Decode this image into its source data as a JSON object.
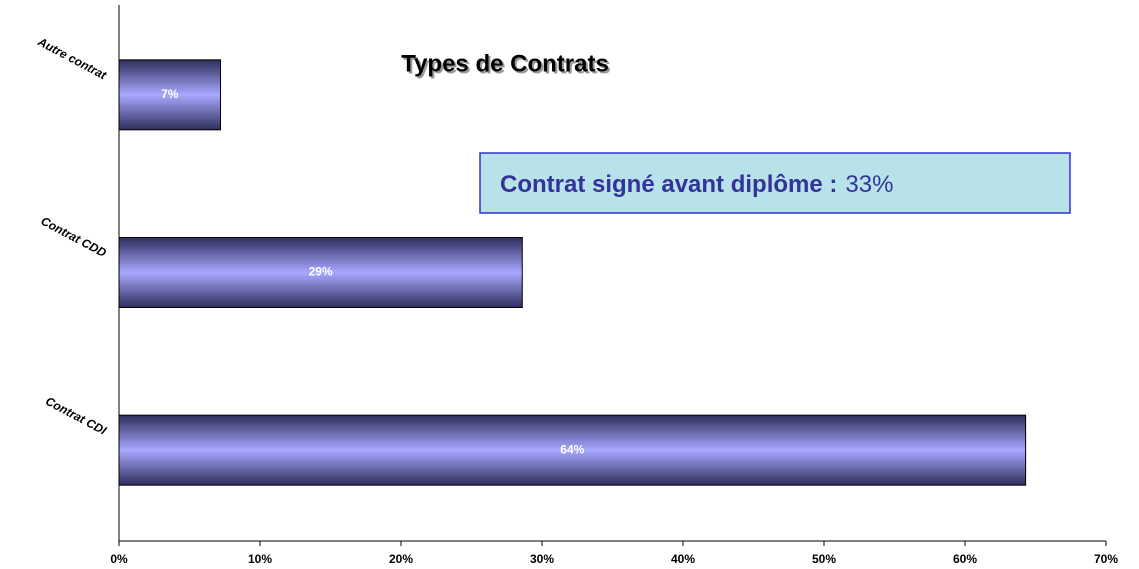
{
  "chart_data": {
    "type": "bar",
    "orientation": "horizontal",
    "title": "Types de Contrats",
    "categories": [
      "Autre contrat",
      "Contrat CDD",
      "Contrat CDI"
    ],
    "values": [
      7.2,
      28.6,
      64.3
    ],
    "value_labels": [
      "7%",
      "29%",
      "64%"
    ],
    "color": "#9999ff",
    "xlim": [
      0,
      70
    ],
    "xticks": [
      {
        "value": 0,
        "label": "0%"
      },
      {
        "value": 10,
        "label": "10%"
      },
      {
        "value": 20,
        "label": "20%"
      },
      {
        "value": 30,
        "label": "30%"
      },
      {
        "value": 40,
        "label": "40%"
      },
      {
        "value": 50,
        "label": "50%"
      },
      {
        "value": 60,
        "label": "60%"
      },
      {
        "value": 70,
        "label": "70%"
      }
    ],
    "grid": false,
    "annotation": {
      "text": "Contrat signé avant diplôme :",
      "value": 33,
      "value_label": "33%"
    }
  }
}
